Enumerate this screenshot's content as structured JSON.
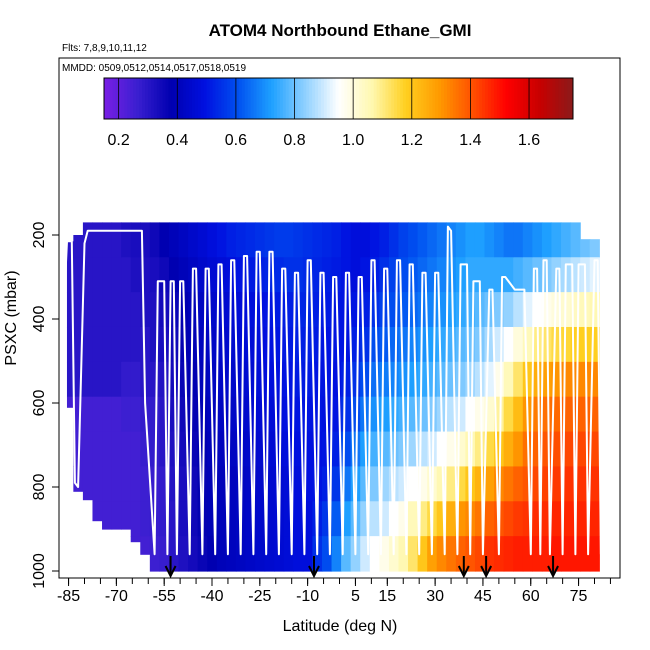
{
  "chart_data": {
    "type": "heatmap",
    "title": "ATOM4 Northbound Ethane_GMI",
    "subtitle_flights": "Flts: 7,8,9,10,11,12",
    "subtitle_dates": "MMDD: 0509,0512,0514,0517,0518,0519",
    "xlabel": "Latitude (deg N)",
    "ylabel": "PSXC (mbar)",
    "xlim": [
      -88,
      88
    ],
    "ylim": [
      1000,
      100
    ],
    "x_ticks": [
      -85,
      -70,
      -55,
      -40,
      -25,
      -10,
      5,
      15,
      30,
      45,
      60,
      75
    ],
    "x_tick_labels": [
      "-85",
      "-70",
      "-55",
      "-40",
      "-25",
      "-10",
      "5",
      "15",
      "30",
      "45",
      "60",
      "75"
    ],
    "y_ticks": [
      1000,
      800,
      600,
      400,
      200
    ],
    "y_tick_labels": [
      "1000",
      "800",
      "600",
      "400",
      "200"
    ],
    "colorbar": {
      "range": [
        0.15,
        1.75
      ],
      "ticks": [
        0.2,
        0.4,
        0.6,
        0.8,
        1.0,
        1.2,
        1.4,
        1.6
      ],
      "tick_labels": [
        "0.2",
        "0.4",
        "0.6",
        "0.8",
        "1.0",
        "1.2",
        "1.4",
        "1.6"
      ],
      "colors": [
        "#7a1fe6",
        "#3a1fd0",
        "#0000b0",
        "#0010e0",
        "#0050f0",
        "#1ea0ff",
        "#8fd0ff",
        "#ffffff",
        "#fff8b0",
        "#ffd020",
        "#ff9a00",
        "#ff5000",
        "#ff0000",
        "#c80000",
        "#8b1a1a"
      ]
    },
    "heatmap_columns": [
      {
        "lat": -84,
        "top": 215,
        "bottom": 610,
        "ratios": [
          0.3,
          0.3,
          0.3,
          0.3,
          0.3,
          0.25,
          0.25,
          0.25,
          0.25,
          0.25
        ]
      },
      {
        "lat": -82,
        "top": 200,
        "bottom": 810,
        "ratios": [
          0.3,
          0.3,
          0.3,
          0.3,
          0.3,
          0.25,
          0.25,
          0.25,
          0.25,
          0.25
        ]
      },
      {
        "lat": -79,
        "top": 170,
        "bottom": 830,
        "ratios": [
          0.3,
          0.3,
          0.3,
          0.3,
          0.3,
          0.25,
          0.25,
          0.25,
          0.25,
          0.25
        ]
      },
      {
        "lat": -76,
        "top": 170,
        "bottom": 880,
        "ratios": [
          0.3,
          0.3,
          0.3,
          0.3,
          0.3,
          0.25,
          0.25,
          0.25,
          0.25,
          0.25
        ]
      },
      {
        "lat": -73,
        "top": 170,
        "bottom": 900,
        "ratios": [
          0.3,
          0.3,
          0.3,
          0.3,
          0.3,
          0.25,
          0.25,
          0.25,
          0.25,
          0.25
        ]
      },
      {
        "lat": -70,
        "top": 170,
        "bottom": 900,
        "ratios": [
          0.3,
          0.3,
          0.3,
          0.3,
          0.3,
          0.25,
          0.25,
          0.25,
          0.25,
          0.25
        ]
      },
      {
        "lat": -67,
        "top": 170,
        "bottom": 900,
        "ratios": [
          0.32,
          0.3,
          0.3,
          0.3,
          0.28,
          0.26,
          0.25,
          0.25,
          0.25,
          0.25
        ]
      },
      {
        "lat": -64,
        "top": 170,
        "bottom": 930,
        "ratios": [
          0.33,
          0.32,
          0.3,
          0.3,
          0.28,
          0.26,
          0.25,
          0.25,
          0.25,
          0.25
        ]
      },
      {
        "lat": -61,
        "top": 170,
        "bottom": 960,
        "ratios": [
          0.33,
          0.32,
          0.32,
          0.3,
          0.3,
          0.28,
          0.27,
          0.26,
          0.26,
          0.25
        ]
      },
      {
        "lat": -58,
        "top": 170,
        "bottom": 1000,
        "ratios": [
          0.35,
          0.33,
          0.32,
          0.32,
          0.3,
          0.28,
          0.28,
          0.27,
          0.27,
          0.26
        ]
      },
      {
        "lat": -55,
        "top": 170,
        "bottom": 1000,
        "ratios": [
          0.38,
          0.35,
          0.34,
          0.33,
          0.31,
          0.3,
          0.3,
          0.28,
          0.28,
          0.27
        ]
      },
      {
        "lat": -52,
        "top": 170,
        "bottom": 1000,
        "ratios": [
          0.4,
          0.38,
          0.36,
          0.35,
          0.34,
          0.33,
          0.32,
          0.31,
          0.3,
          0.3
        ]
      },
      {
        "lat": -49,
        "top": 170,
        "bottom": 1000,
        "ratios": [
          0.42,
          0.4,
          0.38,
          0.37,
          0.36,
          0.35,
          0.34,
          0.33,
          0.33,
          0.32
        ]
      },
      {
        "lat": -46,
        "top": 170,
        "bottom": 1000,
        "ratios": [
          0.44,
          0.42,
          0.4,
          0.39,
          0.38,
          0.37,
          0.36,
          0.35,
          0.35,
          0.34
        ]
      },
      {
        "lat": -43,
        "top": 170,
        "bottom": 1000,
        "ratios": [
          0.46,
          0.44,
          0.42,
          0.41,
          0.4,
          0.39,
          0.38,
          0.37,
          0.37,
          0.36
        ]
      },
      {
        "lat": -40,
        "top": 170,
        "bottom": 1000,
        "ratios": [
          0.48,
          0.46,
          0.44,
          0.43,
          0.42,
          0.41,
          0.4,
          0.39,
          0.39,
          0.38
        ]
      },
      {
        "lat": -37,
        "top": 170,
        "bottom": 1000,
        "ratios": [
          0.5,
          0.47,
          0.45,
          0.44,
          0.43,
          0.42,
          0.41,
          0.4,
          0.4,
          0.4
        ]
      },
      {
        "lat": -34,
        "top": 170,
        "bottom": 1000,
        "ratios": [
          0.52,
          0.48,
          0.46,
          0.45,
          0.44,
          0.43,
          0.42,
          0.41,
          0.41,
          0.41
        ]
      },
      {
        "lat": -31,
        "top": 170,
        "bottom": 1000,
        "ratios": [
          0.53,
          0.5,
          0.47,
          0.46,
          0.45,
          0.44,
          0.43,
          0.42,
          0.42,
          0.42
        ]
      },
      {
        "lat": -28,
        "top": 170,
        "bottom": 1000,
        "ratios": [
          0.54,
          0.51,
          0.48,
          0.47,
          0.46,
          0.45,
          0.44,
          0.43,
          0.43,
          0.43
        ]
      },
      {
        "lat": -25,
        "top": 170,
        "bottom": 1000,
        "ratios": [
          0.55,
          0.52,
          0.49,
          0.48,
          0.47,
          0.46,
          0.45,
          0.44,
          0.44,
          0.44
        ]
      },
      {
        "lat": -22,
        "top": 170,
        "bottom": 1000,
        "ratios": [
          0.56,
          0.53,
          0.5,
          0.49,
          0.48,
          0.47,
          0.46,
          0.45,
          0.45,
          0.45
        ]
      },
      {
        "lat": -19,
        "top": 170,
        "bottom": 1000,
        "ratios": [
          0.57,
          0.54,
          0.51,
          0.5,
          0.49,
          0.48,
          0.47,
          0.46,
          0.46,
          0.46
        ]
      },
      {
        "lat": -16,
        "top": 170,
        "bottom": 1000,
        "ratios": [
          0.57,
          0.55,
          0.52,
          0.51,
          0.5,
          0.49,
          0.48,
          0.47,
          0.47,
          0.47
        ]
      },
      {
        "lat": -13,
        "top": 170,
        "bottom": 1000,
        "ratios": [
          0.56,
          0.55,
          0.53,
          0.52,
          0.51,
          0.5,
          0.49,
          0.48,
          0.48,
          0.48
        ]
      },
      {
        "lat": -10,
        "top": 170,
        "bottom": 1000,
        "ratios": [
          0.55,
          0.54,
          0.53,
          0.52,
          0.51,
          0.5,
          0.49,
          0.49,
          0.48,
          0.48
        ]
      },
      {
        "lat": -7,
        "top": 170,
        "bottom": 1000,
        "ratios": [
          0.54,
          0.53,
          0.52,
          0.51,
          0.5,
          0.5,
          0.49,
          0.5,
          0.52,
          0.55
        ]
      },
      {
        "lat": -4,
        "top": 170,
        "bottom": 1000,
        "ratios": [
          0.53,
          0.52,
          0.51,
          0.5,
          0.5,
          0.49,
          0.5,
          0.52,
          0.56,
          0.6
        ]
      },
      {
        "lat": -1,
        "top": 170,
        "bottom": 1000,
        "ratios": [
          0.52,
          0.51,
          0.5,
          0.5,
          0.49,
          0.5,
          0.52,
          0.56,
          0.62,
          0.68
        ]
      },
      {
        "lat": 2,
        "top": 170,
        "bottom": 1000,
        "ratios": [
          0.5,
          0.5,
          0.5,
          0.5,
          0.52,
          0.55,
          0.6,
          0.66,
          0.72,
          0.78
        ]
      },
      {
        "lat": 5,
        "top": 170,
        "bottom": 1000,
        "ratios": [
          0.48,
          0.48,
          0.5,
          0.52,
          0.55,
          0.6,
          0.66,
          0.72,
          0.78,
          0.84
        ]
      },
      {
        "lat": 8,
        "top": 170,
        "bottom": 1000,
        "ratios": [
          0.48,
          0.5,
          0.52,
          0.55,
          0.6,
          0.66,
          0.72,
          0.78,
          0.84,
          0.9
        ]
      },
      {
        "lat": 11,
        "top": 170,
        "bottom": 1000,
        "ratios": [
          0.5,
          0.52,
          0.55,
          0.6,
          0.65,
          0.7,
          0.76,
          0.82,
          0.88,
          0.95
        ]
      },
      {
        "lat": 14,
        "top": 170,
        "bottom": 1000,
        "ratios": [
          0.52,
          0.55,
          0.58,
          0.62,
          0.67,
          0.72,
          0.78,
          0.85,
          0.9,
          0.98
        ]
      },
      {
        "lat": 17,
        "top": 170,
        "bottom": 1000,
        "ratios": [
          0.55,
          0.58,
          0.6,
          0.64,
          0.68,
          0.74,
          0.8,
          0.88,
          0.95,
          1.02
        ]
      },
      {
        "lat": 20,
        "top": 170,
        "bottom": 1000,
        "ratios": [
          0.58,
          0.6,
          0.62,
          0.66,
          0.7,
          0.76,
          0.82,
          0.9,
          0.98,
          1.06
        ]
      },
      {
        "lat": 23,
        "top": 170,
        "bottom": 1000,
        "ratios": [
          0.6,
          0.62,
          0.64,
          0.68,
          0.72,
          0.78,
          0.85,
          0.95,
          1.05,
          1.12
        ]
      },
      {
        "lat": 26,
        "top": 170,
        "bottom": 1000,
        "ratios": [
          0.62,
          0.64,
          0.66,
          0.7,
          0.74,
          0.8,
          0.88,
          0.98,
          1.1,
          1.2
        ]
      },
      {
        "lat": 29,
        "top": 170,
        "bottom": 1000,
        "ratios": [
          0.64,
          0.66,
          0.68,
          0.72,
          0.76,
          0.82,
          0.9,
          1.02,
          1.15,
          1.28
        ]
      },
      {
        "lat": 32,
        "top": 170,
        "bottom": 1000,
        "ratios": [
          0.66,
          0.68,
          0.7,
          0.74,
          0.78,
          0.85,
          0.95,
          1.06,
          1.2,
          1.32
        ]
      },
      {
        "lat": 35,
        "top": 170,
        "bottom": 1000,
        "ratios": [
          0.68,
          0.7,
          0.72,
          0.76,
          0.8,
          0.88,
          0.98,
          1.1,
          1.25,
          1.35
        ]
      },
      {
        "lat": 38,
        "top": 170,
        "bottom": 1000,
        "ratios": [
          0.7,
          0.72,
          0.74,
          0.78,
          0.82,
          0.9,
          1.02,
          1.15,
          1.3,
          1.38
        ]
      },
      {
        "lat": 41,
        "top": 170,
        "bottom": 1000,
        "ratios": [
          0.72,
          0.74,
          0.76,
          0.8,
          0.85,
          0.95,
          1.06,
          1.2,
          1.32,
          1.4
        ]
      },
      {
        "lat": 44,
        "top": 170,
        "bottom": 1000,
        "ratios": [
          0.72,
          0.74,
          0.78,
          0.82,
          0.88,
          0.98,
          1.1,
          1.24,
          1.35,
          1.42
        ]
      },
      {
        "lat": 47,
        "top": 170,
        "bottom": 1000,
        "ratios": [
          0.7,
          0.74,
          0.8,
          0.86,
          0.92,
          1.02,
          1.15,
          1.28,
          1.38,
          1.45
        ]
      },
      {
        "lat": 50,
        "top": 170,
        "bottom": 1000,
        "ratios": [
          0.68,
          0.74,
          0.82,
          0.9,
          0.98,
          1.08,
          1.2,
          1.32,
          1.4,
          1.46
        ]
      },
      {
        "lat": 53,
        "top": 170,
        "bottom": 1000,
        "ratios": [
          0.66,
          0.74,
          0.84,
          0.95,
          1.05,
          1.15,
          1.25,
          1.35,
          1.42,
          1.47
        ]
      },
      {
        "lat": 56,
        "top": 170,
        "bottom": 1000,
        "ratios": [
          0.66,
          0.76,
          0.88,
          1.0,
          1.12,
          1.22,
          1.3,
          1.38,
          1.44,
          1.48
        ]
      },
      {
        "lat": 59,
        "top": 170,
        "bottom": 1000,
        "ratios": [
          0.68,
          0.78,
          0.92,
          1.05,
          1.2,
          1.3,
          1.36,
          1.4,
          1.45,
          1.48
        ]
      },
      {
        "lat": 62,
        "top": 170,
        "bottom": 1000,
        "ratios": [
          0.7,
          0.8,
          0.95,
          1.1,
          1.25,
          1.34,
          1.38,
          1.42,
          1.46,
          1.48
        ]
      },
      {
        "lat": 65,
        "top": 170,
        "bottom": 1000,
        "ratios": [
          0.72,
          0.82,
          0.98,
          1.12,
          1.28,
          1.36,
          1.4,
          1.43,
          1.46,
          1.48
        ]
      },
      {
        "lat": 68,
        "top": 170,
        "bottom": 1000,
        "ratios": [
          0.74,
          0.84,
          1.0,
          1.15,
          1.3,
          1.37,
          1.41,
          1.44,
          1.47,
          1.49
        ]
      },
      {
        "lat": 71,
        "top": 170,
        "bottom": 1000,
        "ratios": [
          0.76,
          0.86,
          1.02,
          1.16,
          1.32,
          1.38,
          1.42,
          1.45,
          1.47,
          1.49
        ]
      },
      {
        "lat": 74,
        "top": 170,
        "bottom": 1000,
        "ratios": [
          0.78,
          0.88,
          1.04,
          1.18,
          1.32,
          1.38,
          1.42,
          1.45,
          1.47,
          1.49
        ]
      },
      {
        "lat": 77,
        "top": 210,
        "bottom": 1000,
        "ratios": [
          0.8,
          0.9,
          1.05,
          1.18,
          1.32,
          1.38,
          1.42,
          1.45,
          1.47,
          1.49
        ]
      },
      {
        "lat": 80,
        "top": 210,
        "bottom": 1000,
        "ratios": [
          0.82,
          0.92,
          1.06,
          1.18,
          1.32,
          1.38,
          1.42,
          1.45,
          1.47,
          1.49
        ]
      }
    ],
    "flight_profile": {
      "lat": [
        -88,
        -85.5,
        -84,
        -83,
        -82,
        -80,
        -79,
        -77,
        -76,
        -73,
        -72,
        -69,
        -67,
        -62,
        -61,
        -58,
        -57,
        -55,
        -54,
        -53,
        -52,
        -51,
        -50,
        -49,
        -47,
        -46,
        -45,
        -43,
        -42,
        -41,
        -39,
        -38,
        -37,
        -35,
        -34,
        -33,
        -31,
        -30,
        -29,
        -27,
        -26,
        -25,
        -23,
        -22,
        -21,
        -19,
        -18,
        -17,
        -15,
        -14,
        -13,
        -11,
        -10,
        -9,
        -7,
        -6,
        -5,
        -3,
        -2,
        -1,
        1,
        2,
        3,
        5,
        6,
        7,
        9,
        10,
        11,
        13,
        14,
        15,
        17,
        18,
        19,
        21,
        22,
        23,
        25,
        26,
        27,
        29,
        30,
        31,
        33,
        34,
        35,
        37,
        38,
        40,
        41,
        42,
        44,
        45,
        47,
        48,
        50,
        51,
        52,
        55,
        58,
        60,
        61,
        62,
        63,
        64,
        65,
        66,
        68,
        69,
        70,
        71,
        73,
        74,
        75,
        77,
        78,
        80,
        81,
        82
      ],
      "psxc": [
        610,
        215,
        215,
        790,
        800,
        220,
        190,
        190,
        190,
        190,
        190,
        190,
        190,
        190,
        600,
        960,
        310,
        310,
        960,
        310,
        310,
        960,
        310,
        310,
        960,
        280,
        280,
        960,
        280,
        280,
        960,
        270,
        270,
        960,
        260,
        260,
        960,
        250,
        250,
        960,
        240,
        240,
        960,
        240,
        240,
        960,
        280,
        280,
        960,
        290,
        290,
        960,
        260,
        260,
        960,
        290,
        290,
        960,
        300,
        300,
        960,
        290,
        290,
        960,
        300,
        300,
        960,
        260,
        260,
        960,
        280,
        280,
        960,
        260,
        260,
        960,
        270,
        270,
        960,
        290,
        290,
        960,
        290,
        290,
        960,
        180,
        190,
        960,
        270,
        270,
        960,
        310,
        310,
        960,
        330,
        330,
        960,
        300,
        300,
        330,
        330,
        960,
        280,
        280,
        960,
        260,
        260,
        960,
        280,
        280,
        960,
        270,
        270,
        960,
        270,
        270,
        960,
        260,
        260,
        960
      ]
    },
    "arrows_lat": [
      -53,
      -8,
      39,
      46,
      67
    ]
  }
}
